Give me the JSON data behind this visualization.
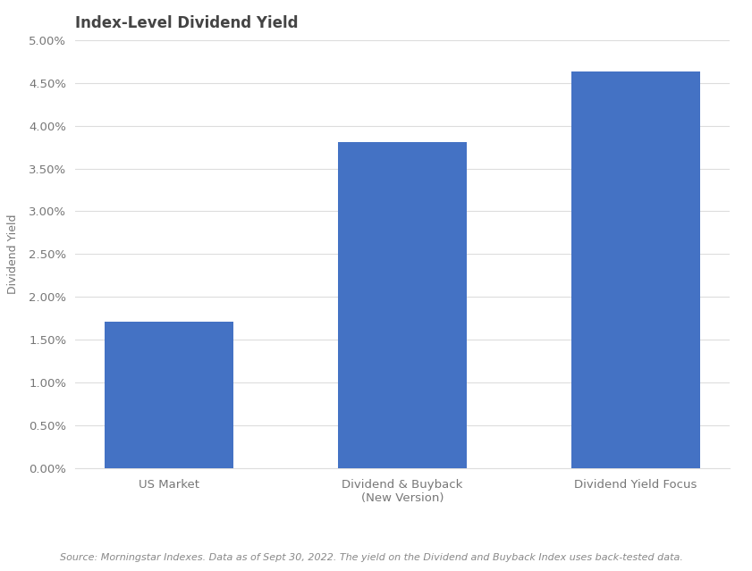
{
  "title": "Index-Level Dividend Yield",
  "categories": [
    "US Market",
    "Dividend & Buyback\n(New Version)",
    "Dividend Yield Focus"
  ],
  "values": [
    0.0171,
    0.0381,
    0.0463
  ],
  "bar_color": "#4472c4",
  "ylabel": "Dividend Yield",
  "ylim": [
    0,
    0.05
  ],
  "yticks": [
    0.0,
    0.005,
    0.01,
    0.015,
    0.02,
    0.025,
    0.03,
    0.035,
    0.04,
    0.045,
    0.05
  ],
  "ytick_labels": [
    "0.00%",
    "0.50%",
    "1.00%",
    "1.50%",
    "2.00%",
    "2.50%",
    "3.00%",
    "3.50%",
    "4.00%",
    "4.50%",
    "5.00%"
  ],
  "source_text": "Source: Morningstar Indexes. Data as of Sept 30, 2022. The yield on the Dividend and Buyback Index uses back-tested data.",
  "background_color": "#ffffff",
  "title_fontsize": 12,
  "label_fontsize": 9,
  "tick_fontsize": 9.5,
  "source_fontsize": 8,
  "bar_width": 0.55,
  "tick_color": "#777777",
  "grid_color": "#dddddd",
  "title_color": "#444444",
  "ylabel_color": "#777777"
}
